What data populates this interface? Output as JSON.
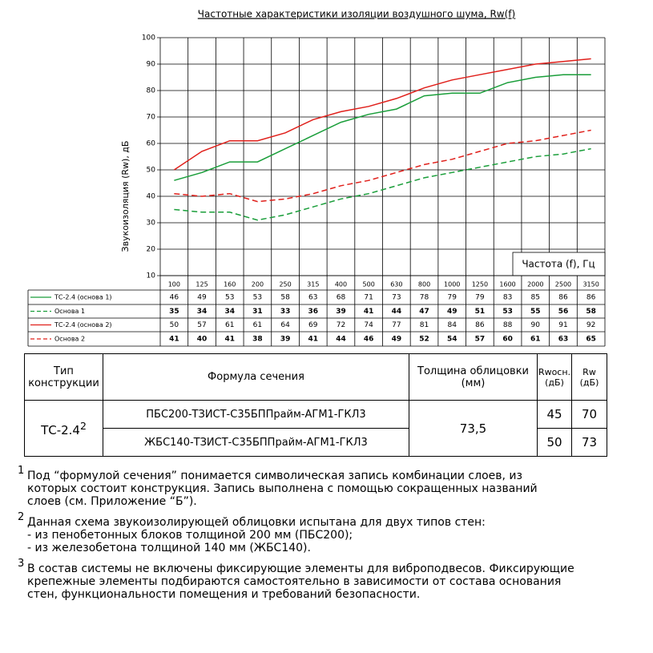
{
  "chart_data": {
    "type": "line",
    "title": "Частотные характеристики изоляции воздушного шума, Rw(f)",
    "y_label": "Звукоизоляция (Rw), дБ",
    "x_label": "Частота (f), Гц",
    "categories": [
      "100",
      "125",
      "160",
      "200",
      "250",
      "315",
      "400",
      "500",
      "630",
      "800",
      "1000",
      "1250",
      "1600",
      "2000",
      "2500",
      "3150"
    ],
    "series": [
      {
        "name": "ТС-2.4 (основа 1)",
        "color": "#1a9e3a",
        "dashed": false,
        "values": [
          46,
          49,
          53,
          53,
          58,
          63,
          68,
          71,
          73,
          78,
          79,
          79,
          83,
          85,
          86,
          86
        ]
      },
      {
        "name": "Основа 1",
        "color": "#1a9e3a",
        "dashed": true,
        "values": [
          35,
          34,
          34,
          31,
          33,
          36,
          39,
          41,
          44,
          47,
          49,
          51,
          53,
          55,
          56,
          58
        ]
      },
      {
        "name": "ТС-2.4 (основа 2)",
        "color": "#e0201b",
        "dashed": false,
        "values": [
          50,
          57,
          61,
          61,
          64,
          69,
          72,
          74,
          77,
          81,
          84,
          86,
          88,
          90,
          91,
          92
        ]
      },
      {
        "name": "Основа 2",
        "color": "#e0201b",
        "dashed": true,
        "values": [
          41,
          40,
          41,
          38,
          39,
          41,
          44,
          46,
          49,
          52,
          54,
          57,
          60,
          61,
          63,
          65
        ]
      }
    ],
    "ylim": [
      10,
      100
    ],
    "yticks": [
      10,
      20,
      30,
      40,
      50,
      60,
      70,
      80,
      90,
      100
    ],
    "grid": true
  },
  "table": {
    "header": [
      "Тип конструкции",
      "Формула сечения",
      "Толщина облицовки (мм)",
      "Rwосн. (дБ)",
      "Rw (дБ)"
    ],
    "type": "ТС-2.4",
    "type_note": "2",
    "thickness": "73,5",
    "rows": [
      [
        "ПБС200-ТЗИСТ-С35БППрайм-АГМ1-ГКЛ3",
        "45",
        "70"
      ],
      [
        "ЖБС140-ТЗИСТ-С35БППрайм-АГМ1-ГКЛ3",
        "50",
        "73"
      ]
    ]
  },
  "footnotes": [
    {
      "mark": "1",
      "lines": [
        "Под “формулой сечения” понимается символическая запись комбинации слоев, из",
        "которых состоит конструкция. Запись выполнена с помощью сокращенных названий",
        "слоев (см. Приложение “Б”)."
      ]
    },
    {
      "mark": "2",
      "lines": [
        "Данная схема звукоизолирующей облицовки испытана для двух типов стен:",
        "- из пенобетонных блоков толщиной 200 мм (ПБС200);",
        "- из железобетона толщиной 140 мм (ЖБС140)."
      ]
    },
    {
      "mark": "3",
      "lines": [
        "В состав системы не включены фиксирующие элементы для виброподвесов. Фиксирующие",
        "крепежные элементы подбираются самостоятельно в зависимости от состава основания",
        "стен, функциональности помещения и требований безопасности."
      ]
    }
  ]
}
